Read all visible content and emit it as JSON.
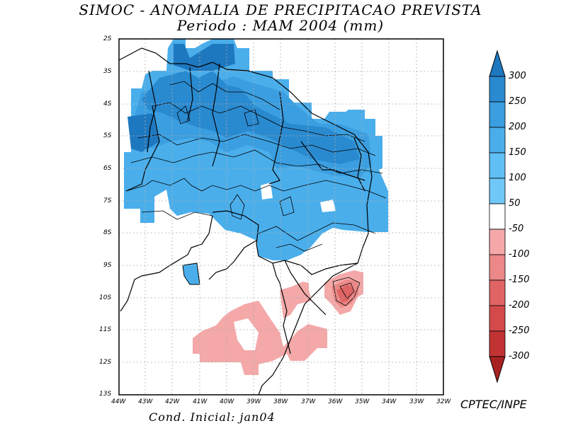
{
  "title_line1": "SIMOC -  ANOMALIA DE PRECIPITACAO PREVISTA",
  "title_line2": "Periodo : MAM 2004 (mm)",
  "lat_labels": [
    "2S",
    "3S",
    "4S",
    "5S",
    "6S",
    "7S",
    "8S",
    "9S",
    "10S",
    "11S",
    "12S",
    "13S"
  ],
  "lon_labels": [
    "44W",
    "43W",
    "42W",
    "41W",
    "40W",
    "39W",
    "38W",
    "37W",
    "36W",
    "35W",
    "34W",
    "33W",
    "32W"
  ],
  "colorbar_labels": [
    "300",
    "250",
    "200",
    "150",
    "100",
    "50",
    "-50",
    "-100",
    "-150",
    "-200",
    "-250",
    "-300"
  ],
  "colorbar_colors": [
    "#1e78c0",
    "#2a8ad0",
    "#3a9ee0",
    "#4aaeeb",
    "#60bff5",
    "#ffffff",
    "#f4a8a8",
    "#ec8888",
    "#e06464",
    "#d44a4a",
    "#c23434",
    "#a82222"
  ],
  "credit": "CPTEC/INPE",
  "cond_inicial": "Cond. Inicial: jan04"
}
